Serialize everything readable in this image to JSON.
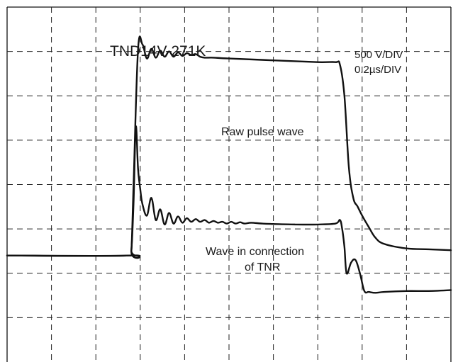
{
  "chart_data": {
    "type": "line",
    "title": "TND14V-271K",
    "scale": {
      "voltage": "500  V/DIV",
      "time": "0.2µs/DIV"
    },
    "divisions": {
      "x": 10,
      "y": 8
    },
    "grid": true,
    "x_unit": "µs",
    "y_unit": "V",
    "xlim": [
      0,
      2.0
    ],
    "ylim": [
      0,
      4000
    ],
    "baseline": 1200,
    "series": [
      {
        "name": "Raw pulse wave",
        "color": "#111111",
        "x": [
          0,
          0.55,
          0.56,
          0.57,
          0.59,
          0.61,
          0.63,
          0.65,
          0.67,
          0.69,
          0.71,
          0.73,
          0.75,
          0.77,
          0.79,
          0.81,
          0.83,
          0.85,
          0.87,
          0.89,
          0.93,
          1.0,
          1.2,
          1.4,
          1.48,
          1.5,
          1.52,
          1.54,
          1.56,
          1.58,
          1.6,
          1.63,
          1.66,
          1.7,
          1.8,
          1.9,
          2.0
        ],
        "y": [
          1200,
          1200,
          1250,
          2000,
          3520,
          3580,
          3420,
          3530,
          3430,
          3510,
          3440,
          3500,
          3440,
          3490,
          3450,
          3480,
          3460,
          3470,
          3440,
          3430,
          3430,
          3420,
          3400,
          3380,
          3380,
          3350,
          3000,
          2200,
          1850,
          1750,
          1650,
          1520,
          1400,
          1330,
          1280,
          1270,
          1260
        ]
      },
      {
        "name": "Wave in connection of TNR",
        "color": "#111111",
        "x": [
          0,
          0.55,
          0.56,
          0.57,
          0.58,
          0.59,
          0.6,
          0.61,
          0.63,
          0.65,
          0.67,
          0.69,
          0.71,
          0.73,
          0.75,
          0.77,
          0.79,
          0.81,
          0.83,
          0.85,
          0.87,
          0.89,
          0.91,
          0.93,
          0.95,
          0.97,
          0.99,
          1.01,
          1.03,
          1.05,
          1.07,
          1.1,
          1.15,
          1.2,
          1.3,
          1.4,
          1.48,
          1.5,
          1.51,
          1.52,
          1.53,
          1.55,
          1.57,
          1.59,
          1.61,
          1.63,
          1.66,
          1.7,
          1.8,
          1.9,
          2.0
        ],
        "y": [
          1200,
          1200,
          1260,
          1800,
          2650,
          2180,
          1950,
          1780,
          1650,
          1850,
          1600,
          1720,
          1550,
          1680,
          1560,
          1640,
          1570,
          1620,
          1580,
          1610,
          1580,
          1600,
          1570,
          1590,
          1570,
          1580,
          1560,
          1580,
          1560,
          1575,
          1560,
          1570,
          1560,
          1555,
          1550,
          1550,
          1560,
          1600,
          1500,
          1300,
          1000,
          1120,
          1150,
          1000,
          800,
          790,
          780,
          790,
          800,
          800,
          810
        ]
      }
    ],
    "annotations": [
      "Raw pulse wave",
      "Wave in connection of TNR"
    ]
  }
}
